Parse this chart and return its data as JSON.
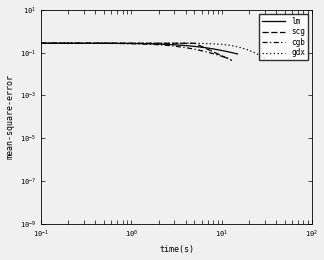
{
  "title": "",
  "xlabel": "time(s)",
  "ylabel": "mean-square-error",
  "xlim_log": [
    -1,
    2
  ],
  "ylim_log": [
    -9,
    1
  ],
  "background_color": "#f0f0f0",
  "legend_labels": [
    "lm",
    "scg",
    "cgb",
    "gdx"
  ],
  "line_styles": [
    "-",
    "--",
    "-.",
    ":"
  ],
  "line_color": "#000000",
  "fontsize_label": 6,
  "fontsize_tick": 5,
  "fontsize_legend": 5.5
}
